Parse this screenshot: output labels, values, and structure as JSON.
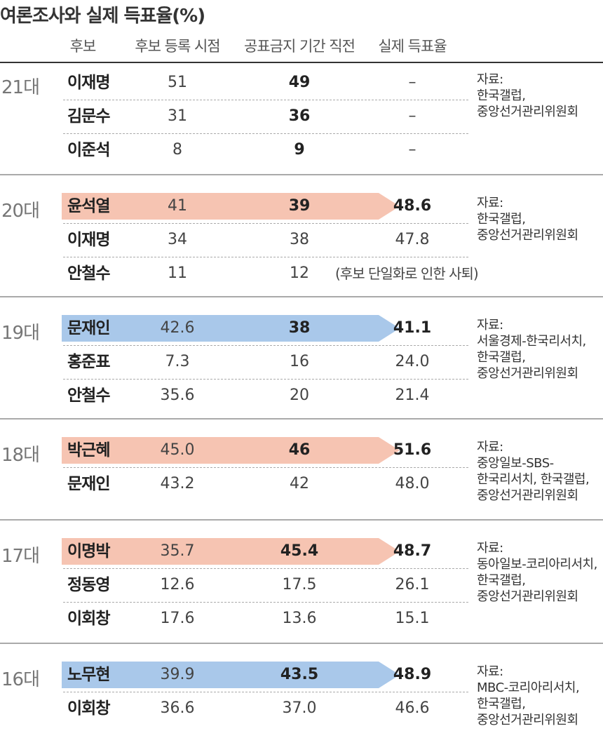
{
  "title": "여론조사와 실제 득표율(%)",
  "colors": {
    "orange": "#f6c4b2",
    "blue": "#a9c8ea"
  },
  "chart_data": {
    "type": "table",
    "columns": [
      "후보",
      "후보 등록 시점",
      "공표금지 기간 직전",
      "실제 득표율"
    ],
    "elections": [
      {
        "label": "21대",
        "source": [
          "자료:",
          "한국갤럽,",
          "중앙선거관리위원회"
        ],
        "candidates": [
          {
            "name": "이재명",
            "reg": "51",
            "pre": "49",
            "actual": "–",
            "pre_bold": true,
            "actual_bold": false,
            "highlight": null
          },
          {
            "name": "김문수",
            "reg": "31",
            "pre": "36",
            "actual": "–",
            "pre_bold": true,
            "actual_bold": false,
            "highlight": null
          },
          {
            "name": "이준석",
            "reg": "8",
            "pre": "9",
            "actual": "–",
            "pre_bold": true,
            "actual_bold": false,
            "highlight": null
          }
        ]
      },
      {
        "label": "20대",
        "source": [
          "자료:",
          "한국갤럽,",
          "중앙선거관리위원회"
        ],
        "candidates": [
          {
            "name": "윤석열",
            "reg": "41",
            "pre": "39",
            "actual": "48.6",
            "pre_bold": true,
            "actual_bold": true,
            "highlight": "orange"
          },
          {
            "name": "이재명",
            "reg": "34",
            "pre": "38",
            "actual": "47.8",
            "pre_bold": false,
            "actual_bold": false,
            "highlight": null
          },
          {
            "name": "안철수",
            "reg": "11",
            "pre": "12",
            "actual": null,
            "note": "(후보 단일화로 인한 사퇴)",
            "pre_bold": false,
            "actual_bold": false,
            "highlight": null
          }
        ]
      },
      {
        "label": "19대",
        "source": [
          "자료:",
          "서울경제-한국리서치,",
          "한국갤럽,",
          "중앙선거관리위원회"
        ],
        "candidates": [
          {
            "name": "문재인",
            "reg": "42.6",
            "pre": "38",
            "actual": "41.1",
            "pre_bold": true,
            "actual_bold": true,
            "highlight": "blue"
          },
          {
            "name": "홍준표",
            "reg": "7.3",
            "pre": "16",
            "actual": "24.0",
            "pre_bold": false,
            "actual_bold": false,
            "highlight": null
          },
          {
            "name": "안철수",
            "reg": "35.6",
            "pre": "20",
            "actual": "21.4",
            "pre_bold": false,
            "actual_bold": false,
            "highlight": null
          }
        ]
      },
      {
        "label": "18대",
        "source": [
          "자료:",
          "중앙일보-SBS-",
          "한국리서치, 한국갤럽,",
          "중앙선거관리위원회"
        ],
        "candidates": [
          {
            "name": "박근혜",
            "reg": "45.0",
            "pre": "46",
            "actual": "51.6",
            "pre_bold": true,
            "actual_bold": true,
            "highlight": "orange"
          },
          {
            "name": "문재인",
            "reg": "43.2",
            "pre": "42",
            "actual": "48.0",
            "pre_bold": false,
            "actual_bold": false,
            "highlight": null
          }
        ]
      },
      {
        "label": "17대",
        "source": [
          "자료:",
          "동아일보-코리아리서치,",
          "한국갤럽,",
          "중앙선거관리위원회"
        ],
        "candidates": [
          {
            "name": "이명박",
            "reg": "35.7",
            "pre": "45.4",
            "actual": "48.7",
            "pre_bold": true,
            "actual_bold": true,
            "highlight": "orange"
          },
          {
            "name": "정동영",
            "reg": "12.6",
            "pre": "17.5",
            "actual": "26.1",
            "pre_bold": false,
            "actual_bold": false,
            "highlight": null
          },
          {
            "name": "이회창",
            "reg": "17.6",
            "pre": "13.6",
            "actual": "15.1",
            "pre_bold": false,
            "actual_bold": false,
            "highlight": null
          }
        ]
      },
      {
        "label": "16대",
        "source": [
          "자료:",
          "MBC-코리아리서치,",
          "한국갤럽,",
          "중앙선거관리위원회"
        ],
        "candidates": [
          {
            "name": "노무현",
            "reg": "39.9",
            "pre": "43.5",
            "actual": "48.9",
            "pre_bold": true,
            "actual_bold": true,
            "highlight": "blue"
          },
          {
            "name": "이회창",
            "reg": "36.6",
            "pre": "37.0",
            "actual": "46.6",
            "pre_bold": false,
            "actual_bold": false,
            "highlight": null
          }
        ]
      }
    ]
  }
}
